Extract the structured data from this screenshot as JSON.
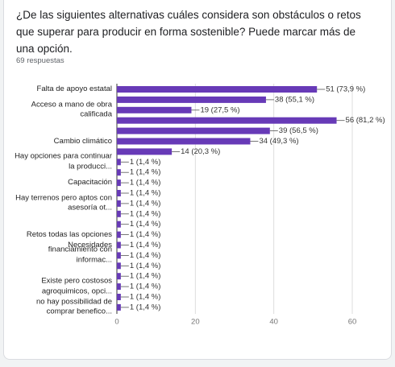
{
  "chart_data": {
    "type": "barh",
    "title": "¿De las siguientes alternativas cuáles considera son obstáculos o retos que superar para producir en forma sostenible? Puede marcar más de una opción.",
    "subtitle": "69 respuestas",
    "categories": [
      "Falta de apoyo estatal",
      null,
      "Acceso a mano de obra calificada",
      null,
      null,
      "Cambio climático",
      null,
      "Hay opciones para continuar la producci...",
      null,
      "Capacitación",
      null,
      "Hay terrenos pero aptos con asesoría ot...",
      null,
      null,
      "Retos todas las opciones",
      "Necesidades",
      "financiamiento con informac...",
      null,
      null,
      "Existe pero costosos agroquimicos, opci...",
      null,
      "no hay possibilidad de comprar benefico..."
    ],
    "values": [
      51,
      38,
      19,
      56,
      39,
      34,
      14,
      1,
      1,
      1,
      1,
      1,
      1,
      1,
      1,
      1,
      1,
      1,
      1,
      1,
      1,
      1
    ],
    "value_labels": [
      "51 (73,9 %)",
      "38 (55,1 %)",
      "19 (27,5 %)",
      "56 (81,2 %)",
      "39 (56,5 %)",
      "34 (49,3 %)",
      "14 (20,3 %)",
      "1 (1,4 %)",
      "1 (1,4 %)",
      "1 (1,4 %)",
      "1 (1,4 %)",
      "1 (1,4 %)",
      "1 (1,4 %)",
      "1 (1,4 %)",
      "1 (1,4 %)",
      "1 (1,4 %)",
      "1 (1,4 %)",
      "1 (1,4 %)",
      "1 (1,4 %)",
      "1 (1,4 %)",
      "1 (1,4 %)",
      "1 (1,4 %)"
    ],
    "color": "#673ab7",
    "xlim": [
      0,
      60
    ],
    "xticks": [
      0,
      20,
      40,
      60
    ],
    "grid": true
  }
}
